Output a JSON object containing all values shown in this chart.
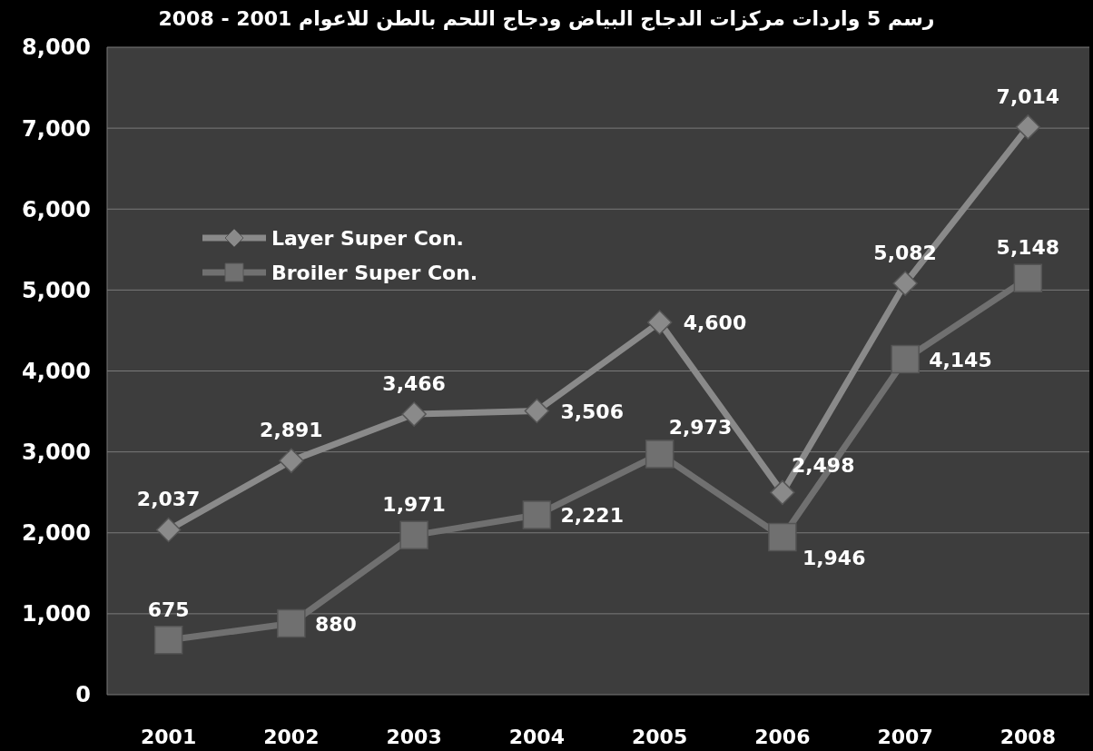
{
  "chart_data": {
    "type": "line",
    "title": "رسم 5 واردات مركزات الدجاج البياض ودجاج اللحم بالطن للاعوام 2001 - 2008",
    "categories": [
      "2001",
      "2002",
      "2003",
      "2004",
      "2005",
      "2006",
      "2007",
      "2008"
    ],
    "series": [
      {
        "name": "Layer Super Con.",
        "color": "#8a8a8a",
        "marker": "diamond",
        "values": [
          2037,
          2891,
          3466,
          3506,
          4600,
          2498,
          5082,
          7014
        ],
        "value_labels": [
          "2,037",
          "2,891",
          "3,466",
          "3,506",
          "4,600",
          "2,498",
          "5,082",
          "7,014"
        ]
      },
      {
        "name": "Broiler Super Con.",
        "color": "#707070",
        "marker": "square",
        "values": [
          675,
          880,
          1971,
          2221,
          2973,
          1946,
          4145,
          5148
        ],
        "value_labels": [
          "675",
          "880",
          "1,971",
          "2,221",
          "2,973",
          "1,946",
          "4,145",
          "5,148"
        ]
      }
    ],
    "ylim": [
      0,
      8000
    ],
    "yticks": [
      {
        "value": 0,
        "label": "0"
      },
      {
        "value": 1000,
        "label": "1,000"
      },
      {
        "value": 2000,
        "label": "2,000"
      },
      {
        "value": 3000,
        "label": "3,000"
      },
      {
        "value": 4000,
        "label": "4,000"
      },
      {
        "value": 5000,
        "label": "5,000"
      },
      {
        "value": 6000,
        "label": "6,000"
      },
      {
        "value": 7000,
        "label": "7,000"
      },
      {
        "value": 8000,
        "label": "8,000"
      }
    ],
    "grid": "y",
    "legend": "top left",
    "line_style": "solid"
  }
}
